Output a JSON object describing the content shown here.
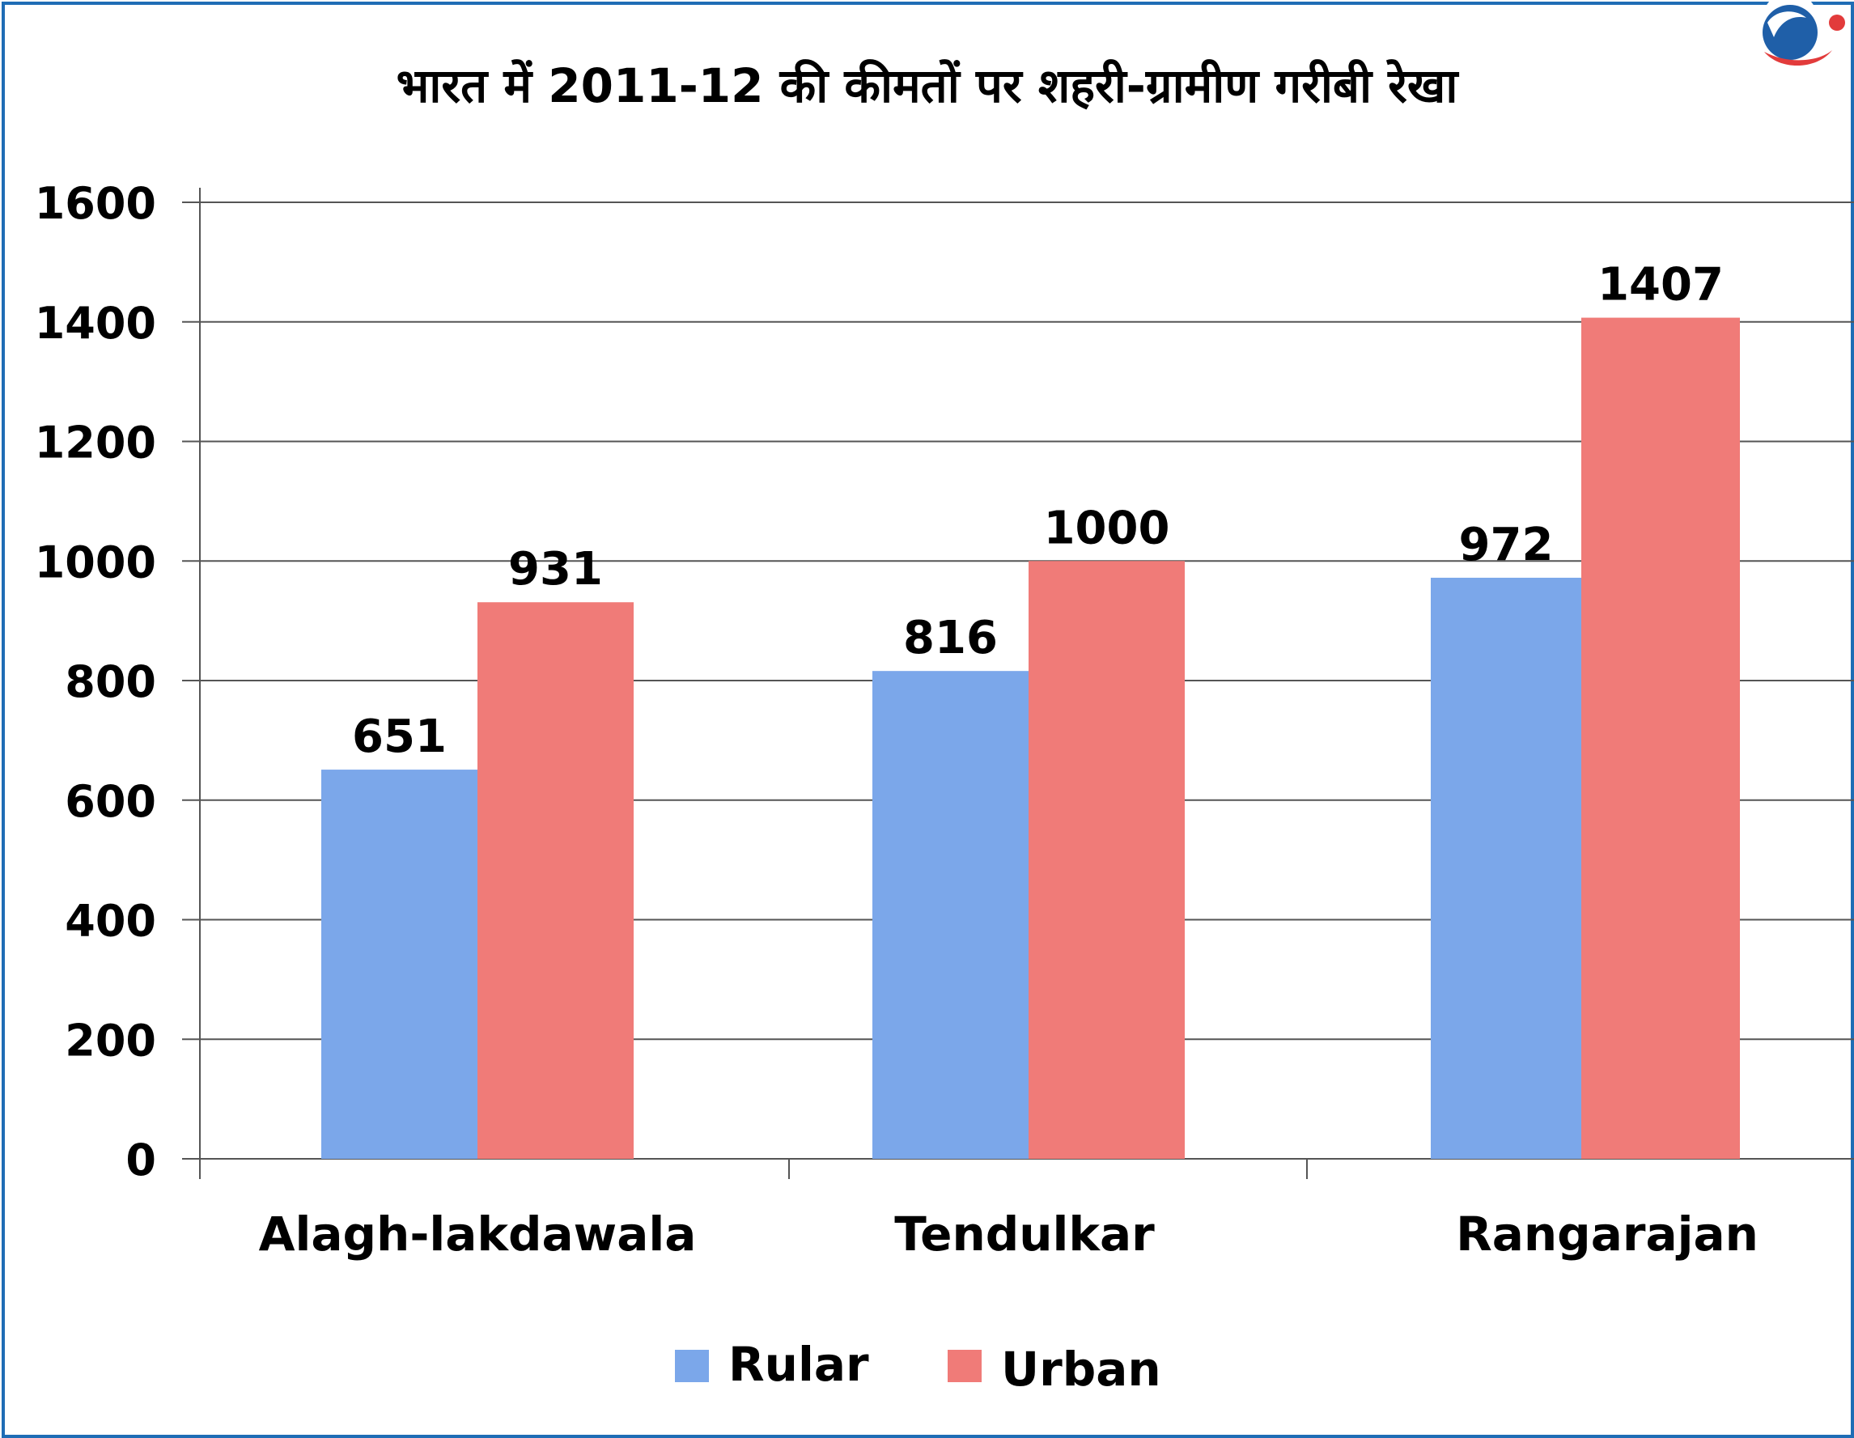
{
  "chart_data": {
    "type": "bar",
    "title": "भारत में 2011-12 की कीमतों पर शहरी-ग्रामीण गरीबी रेखा",
    "categories": [
      "Alagh-lakdawala",
      "Tendulkar",
      "Rangarajan"
    ],
    "series": [
      {
        "name": "Rular",
        "values": [
          651,
          816,
          972
        ],
        "color": "#7ba7ea"
      },
      {
        "name": "Urban",
        "values": [
          931,
          1000,
          1407
        ],
        "color": "#f07b78"
      }
    ],
    "yticks": [
      "0",
      "200",
      "400",
      "600",
      "800",
      "1000",
      "1200",
      "1400",
      "1600"
    ],
    "ylim": [
      0,
      1600
    ],
    "grid": true,
    "legend": "bottom"
  },
  "colors": {
    "frame": "#1f6db5",
    "grid": "#555555"
  },
  "logo": {
    "icon": "brand-logo-icon"
  }
}
